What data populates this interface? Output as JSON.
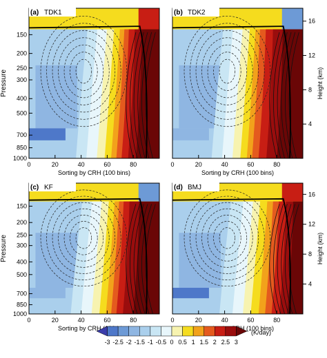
{
  "chart_data": [
    {
      "type": "heatmap",
      "panel_label": "(a)",
      "title": "TDK1",
      "xlabel": "Sorting by CRH (100 bins)",
      "ylabel": "Pressure",
      "y2label": "",
      "xlim": [
        0,
        100
      ],
      "x_ticks": [
        "0",
        "20",
        "40",
        "60",
        "80"
      ],
      "y_ticks": [
        "150",
        "200",
        "250",
        "300",
        "400",
        "500",
        "700",
        "850",
        "1000"
      ],
      "y2_ticks": []
    },
    {
      "type": "heatmap",
      "panel_label": "(b)",
      "title": "TDK2",
      "xlabel": "Sorting by CRH (100 bins)",
      "ylabel": "",
      "y2label": "Height (km)",
      "xlim": [
        0,
        100
      ],
      "x_ticks": [
        "0",
        "20",
        "40",
        "60",
        "80"
      ],
      "y_ticks": [],
      "y2_ticks": [
        "16",
        "12",
        "8",
        "4"
      ]
    },
    {
      "type": "heatmap",
      "panel_label": "(c)",
      "title": "KF",
      "xlabel": "Sorting by CRH (100 bins)",
      "ylabel": "Pressure",
      "y2label": "",
      "xlim": [
        0,
        100
      ],
      "x_ticks": [
        "0",
        "20",
        "40",
        "60",
        "80"
      ],
      "y_ticks": [
        "150",
        "200",
        "250",
        "300",
        "400",
        "500",
        "700",
        "850",
        "1000"
      ],
      "y2_ticks": []
    },
    {
      "type": "heatmap",
      "panel_label": "(d)",
      "title": "BMJ",
      "xlabel": "Sorting by CRH (100 bins)",
      "ylabel": "",
      "y2label": "Height (km)",
      "xlim": [
        0,
        100
      ],
      "x_ticks": [
        "0",
        "20",
        "40",
        "60",
        "80"
      ],
      "y_ticks": [],
      "y2_ticks": [
        "16",
        "12",
        "8",
        "4"
      ]
    }
  ],
  "colorbar": {
    "labels": [
      "-3",
      "-2.5",
      "-2",
      "-1.5",
      "-1",
      "-0.5",
      "0",
      "0.5",
      "1",
      "1.5",
      "2",
      "2.5",
      "3"
    ],
    "unit": "(K/day)",
    "colors": [
      "#3b3dab",
      "#4e78c9",
      "#6d9ad6",
      "#8fb6e2",
      "#aacfec",
      "#c9e6f4",
      "#e8f6fb",
      "#f7f3b0",
      "#f5dc1e",
      "#f2a21b",
      "#e45a1e",
      "#c81e14",
      "#9a0d0d",
      "#6a0606"
    ]
  }
}
